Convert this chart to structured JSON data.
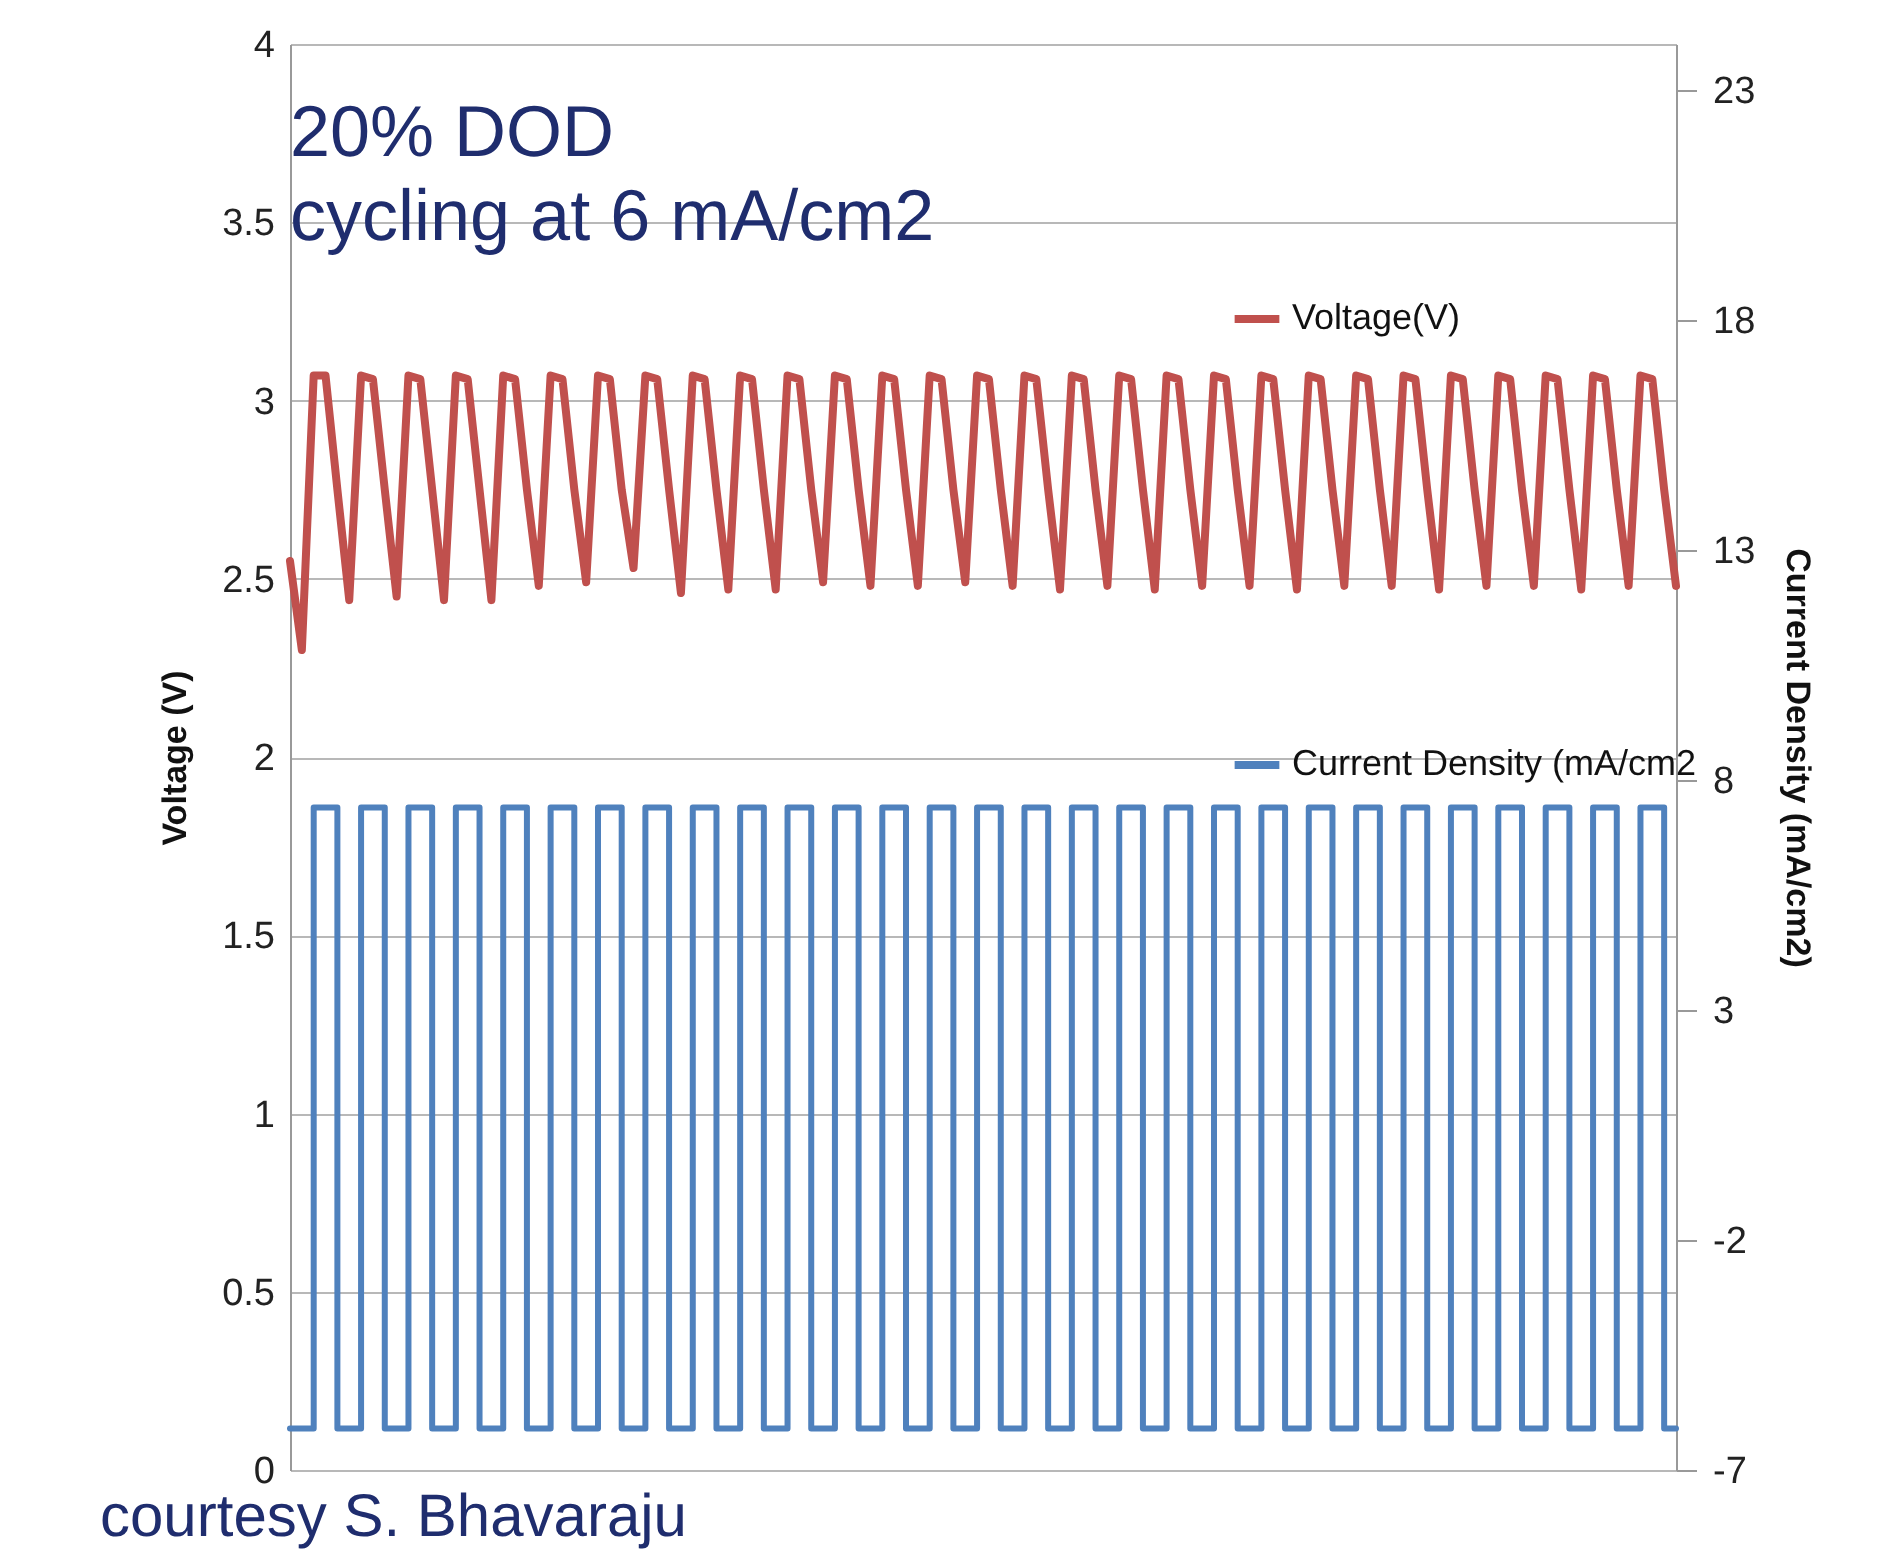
{
  "chart_data": {
    "type": "line",
    "title": "20% DOD",
    "subtitle": "cycling at 6 mA/cm2",
    "ylabel": "Voltage (V)",
    "y2label": "Current Density (mA/cm2)",
    "annotations": [
      "courtesy S. Bhavaraju"
    ],
    "categories": [
      null,
      null,
      null,
      null,
      null,
      null,
      null,
      null,
      null,
      null,
      null,
      null,
      null,
      null,
      null,
      null,
      null,
      null,
      null,
      null,
      null,
      null,
      null,
      null,
      null,
      null,
      null,
      null,
      null,
      null,
      null,
      null,
      null,
      null,
      null,
      null,
      null,
      null,
      null,
      null,
      null,
      null,
      null,
      null,
      null,
      null,
      null,
      null,
      null,
      null,
      null,
      null,
      null,
      null,
      null,
      null,
      null,
      null,
      null,
      null,
      null,
      null,
      null,
      null,
      null,
      null,
      null,
      null,
      null,
      null,
      null,
      null,
      null,
      null,
      null,
      null,
      null,
      null,
      null,
      null,
      null,
      null,
      null,
      null,
      null,
      null,
      null,
      null,
      null,
      null,
      null,
      null,
      null,
      null,
      null,
      null,
      null,
      null,
      null,
      null,
      null,
      null,
      null,
      null,
      null,
      null,
      null,
      null,
      null,
      null,
      null,
      null,
      null,
      null,
      null,
      null,
      null,
      null
    ],
    "series": [
      {
        "name": "Voltage(V)",
        "color": "#c0504d",
        "type": "line",
        "values": [
          2.55,
          2.3,
          3.07,
          3.07,
          2.75,
          2.44,
          3.07,
          3.06,
          2.75,
          2.45,
          3.07,
          3.06,
          2.75,
          2.44,
          3.07,
          3.06,
          2.75,
          2.44,
          3.07,
          3.06,
          2.75,
          2.48,
          3.07,
          3.06,
          2.75,
          2.49,
          3.07,
          3.06,
          2.75,
          2.53,
          3.07,
          3.06,
          2.75,
          2.46,
          3.07,
          3.06,
          2.75,
          2.47,
          3.07,
          3.06,
          2.75,
          2.47,
          3.07,
          3.06,
          2.75,
          2.49,
          3.07,
          3.06,
          2.75,
          2.48,
          3.07,
          3.06,
          2.75,
          2.48,
          3.07,
          3.06,
          2.75,
          2.49,
          3.07,
          3.06,
          2.75,
          2.48,
          3.07,
          3.06,
          2.75,
          2.47,
          3.07,
          3.06,
          2.75,
          2.48,
          3.07,
          3.06,
          2.75,
          2.47,
          3.07,
          3.06,
          2.75,
          2.48,
          3.07,
          3.06,
          2.75,
          2.48,
          3.07,
          3.06,
          2.75,
          2.47,
          3.07,
          3.06,
          2.75,
          2.48,
          3.07,
          3.06,
          2.75,
          2.48,
          3.07,
          3.06,
          2.75,
          2.47,
          3.07,
          3.06,
          2.75,
          2.48,
          3.07,
          3.06,
          2.75,
          2.48,
          3.07,
          3.06,
          2.75,
          2.47,
          3.07,
          3.06,
          2.75,
          2.48,
          3.07,
          3.06,
          2.75,
          2.48
        ]
      },
      {
        "name": "Current Density (mA/cm2",
        "color": "#4f81bd",
        "type": "step",
        "axis": "y2",
        "values": [
          -6.1,
          -6.1,
          7.4,
          7.4,
          -6.1,
          -6.1,
          7.4,
          7.4,
          -6.1,
          -6.1,
          7.4,
          7.4,
          -6.1,
          -6.1,
          7.4,
          7.4,
          -6.1,
          -6.1,
          7.4,
          7.4,
          -6.1,
          -6.1,
          7.4,
          7.4,
          -6.1,
          -6.1,
          7.4,
          7.4,
          -6.1,
          -6.1,
          7.4,
          7.4,
          -6.1,
          -6.1,
          7.4,
          7.4,
          -6.1,
          -6.1,
          7.4,
          7.4,
          -6.1,
          -6.1,
          7.4,
          7.4,
          -6.1,
          -6.1,
          7.4,
          7.4,
          -6.1,
          -6.1,
          7.4,
          7.4,
          -6.1,
          -6.1,
          7.4,
          7.4,
          -6.1,
          -6.1,
          7.4,
          7.4,
          -6.1,
          -6.1,
          7.4,
          7.4,
          -6.1,
          -6.1,
          7.4,
          7.4,
          -6.1,
          -6.1,
          7.4,
          7.4,
          -6.1,
          -6.1,
          7.4,
          7.4,
          -6.1,
          -6.1,
          7.4,
          7.4,
          -6.1,
          -6.1,
          7.4,
          7.4,
          -6.1,
          -6.1,
          7.4,
          7.4,
          -6.1,
          -6.1,
          7.4,
          7.4,
          -6.1,
          -6.1,
          7.4,
          7.4,
          -6.1,
          -6.1,
          7.4,
          7.4,
          -6.1,
          -6.1,
          7.4,
          7.4,
          -6.1,
          -6.1,
          7.4,
          7.4,
          -6.1,
          -6.1,
          7.4,
          7.4,
          -6.1,
          -6.1,
          7.4,
          7.4,
          -6.1,
          -6.1
        ]
      }
    ],
    "ylim": [
      0,
      4
    ],
    "yticks": [
      0,
      0.5,
      1,
      1.5,
      2,
      2.5,
      3,
      3.5,
      4
    ],
    "y2lim": [
      -7,
      24
    ],
    "y2ticks": [
      -7,
      -2,
      3,
      8,
      13,
      18,
      23
    ],
    "grid": "y",
    "legend": "top right"
  }
}
